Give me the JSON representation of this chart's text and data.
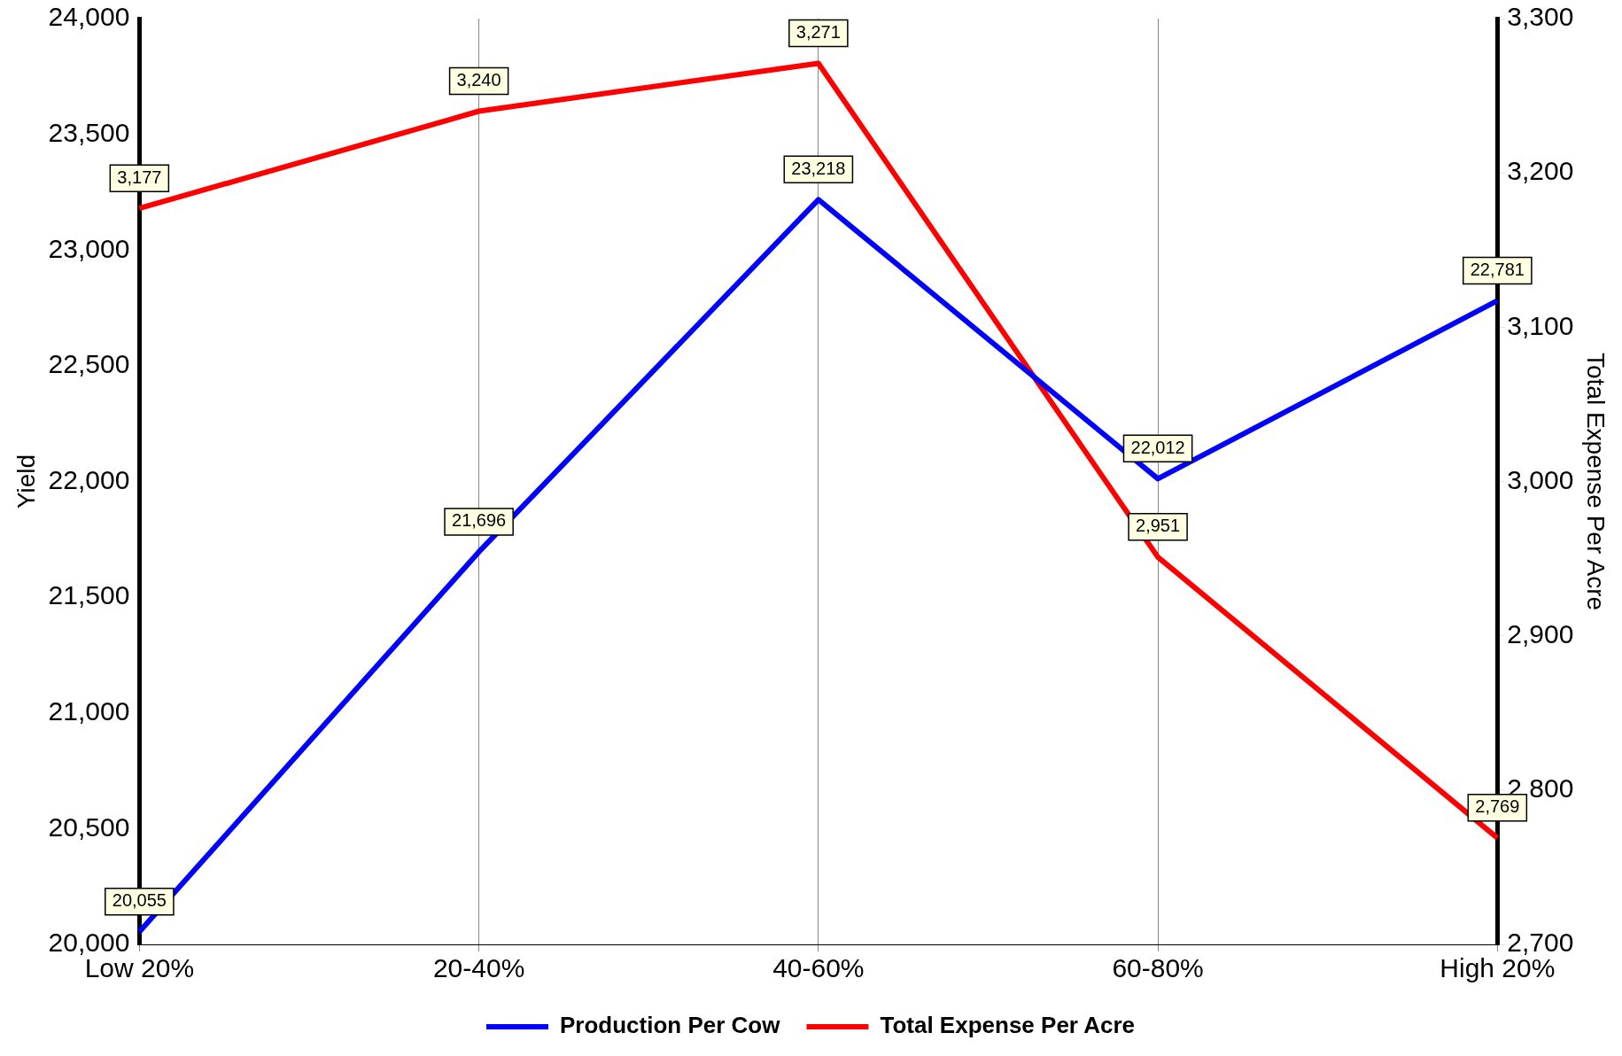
{
  "chart_data": {
    "type": "line",
    "categories": [
      "Low 20%",
      "20-40%",
      "40-60%",
      "60-80%",
      "High 20%"
    ],
    "ylabel": "Yield",
    "y2label": "Total Expense Per Acre",
    "series": [
      {
        "name": "Production Per Cow",
        "color": "#0000ff",
        "values": [
          20055,
          21696,
          23218,
          22012,
          22781
        ],
        "value_labels": [
          "20,055",
          "21,696",
          "23,218",
          "22,012",
          "22,781"
        ]
      },
      {
        "name": "Total Expense Per Acre",
        "color": "#ff0000",
        "axis": "y2",
        "values": [
          3177,
          3240,
          3271,
          2951,
          2769
        ],
        "value_labels": [
          "3,177",
          "3,240",
          "3,271",
          "2,951",
          "2,769"
        ]
      }
    ],
    "ylim": [
      20000,
      24000
    ],
    "yticks": [
      {
        "value": 20000,
        "label": "20,000"
      },
      {
        "value": 20500,
        "label": "20,500"
      },
      {
        "value": 21000,
        "label": "21,000"
      },
      {
        "value": 21500,
        "label": "21,500"
      },
      {
        "value": 22000,
        "label": "22,000"
      },
      {
        "value": 22500,
        "label": "22,500"
      },
      {
        "value": 23000,
        "label": "23,000"
      },
      {
        "value": 23500,
        "label": "23,500"
      },
      {
        "value": 24000,
        "label": "24,000"
      }
    ],
    "y2lim": [
      2700,
      3300
    ],
    "y2ticks": [
      {
        "value": 2700,
        "label": "2,700"
      },
      {
        "value": 2800,
        "label": "2,800"
      },
      {
        "value": 2900,
        "label": "2,900"
      },
      {
        "value": 3000,
        "label": "3,000"
      },
      {
        "value": 3100,
        "label": "3,100"
      },
      {
        "value": 3200,
        "label": "3,200"
      },
      {
        "value": 3300,
        "label": "3,300"
      }
    ],
    "grid": "x",
    "legend": "bottom",
    "marker": "none",
    "line_style": "solid"
  }
}
